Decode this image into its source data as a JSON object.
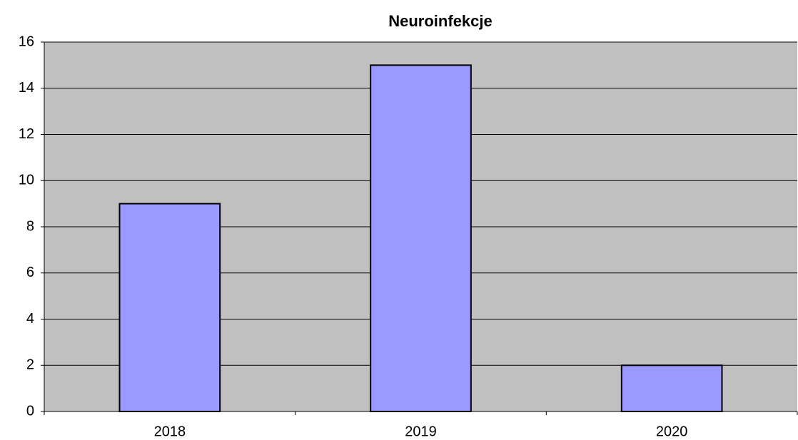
{
  "chart_data": {
    "type": "bar",
    "title": "Neuroinfekcje",
    "categories": [
      "2018",
      "2019",
      "2020"
    ],
    "values": [
      9,
      15,
      2
    ],
    "color": "#9999ff",
    "background": "#c0c0c0",
    "ylim": [
      0,
      16
    ],
    "yticks": [
      0,
      2,
      4,
      6,
      8,
      10,
      12,
      14,
      16
    ],
    "grid": true
  }
}
